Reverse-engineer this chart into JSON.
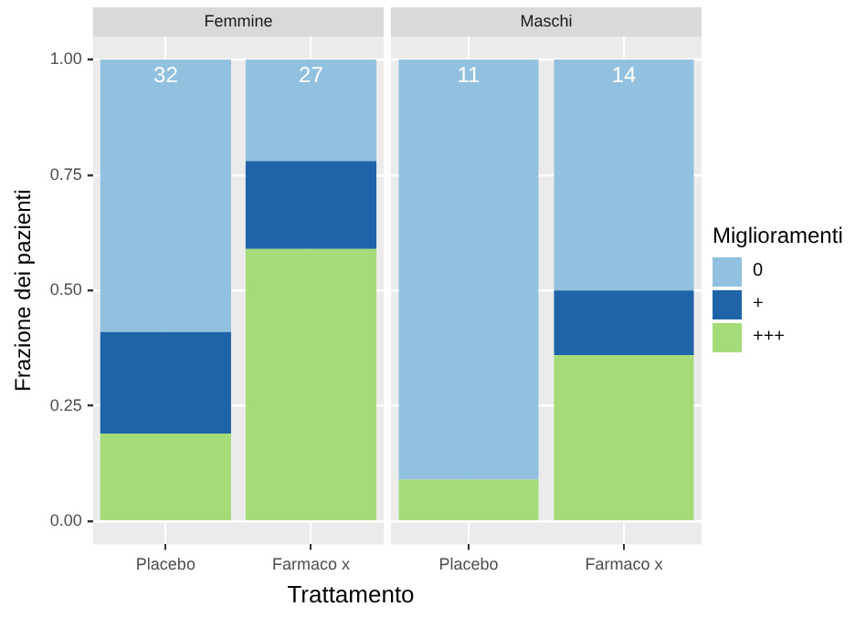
{
  "chart_data": [
    {
      "type": "bar",
      "title": "Femmine",
      "categories": [
        "Placebo",
        "Farmaco x"
      ],
      "stacked": true,
      "series": [
        {
          "color": "#a6db7a",
          "values": [
            0.19,
            0.59
          ]
        },
        {
          "color": "#1f63a8",
          "values": [
            0.22,
            0.19
          ]
        },
        {
          "color": "#92c0df",
          "values": [
            0.59,
            0.22
          ]
        }
      ],
      "ylim": [
        -0.05,
        1.05
      ],
      "yticks": [
        {
          "value": 0,
          "label": "0.00"
        },
        {
          "value": 0.25,
          "label": "0.25"
        },
        {
          "value": 0.5,
          "label": "0.50"
        },
        {
          "value": 0.75,
          "label": "0.75"
        },
        {
          "value": 1,
          "label": "1.00"
        }
      ],
      "xlabel": "Trattamento",
      "ylabel": "Frazione dei pazienti",
      "annotations": [
        {
          "text": "32",
          "x": "Placebo",
          "y": 1
        },
        {
          "text": "27",
          "x": "Farmaco x",
          "y": 1
        }
      ],
      "grid": true,
      "legend": false
    },
    {
      "type": "bar",
      "title": "Maschi",
      "categories": [
        "Placebo",
        "Farmaco x"
      ],
      "stacked": true,
      "series": [
        {
          "name": "+++",
          "color": "#a6db7a",
          "values": [
            0.09,
            0.36
          ]
        },
        {
          "name": "+",
          "color": "#1f63a8",
          "values": [
            0,
            0.14
          ]
        },
        {
          "name": "0",
          "color": "#92c0df",
          "values": [
            0.91,
            0.5
          ]
        }
      ],
      "ylim": [
        -0.05,
        1.05
      ],
      "yticks": [
        0,
        0.25,
        0.5,
        0.75,
        1
      ],
      "tick_labels": "x",
      "legend_title": "Miglioramenti",
      "annotations": [
        {
          "text": "11",
          "x": "Placebo",
          "y": 1
        },
        {
          "text": "14",
          "x": "Farmaco x",
          "y": 1
        }
      ],
      "grid": true,
      "legend": "right"
    }
  ]
}
